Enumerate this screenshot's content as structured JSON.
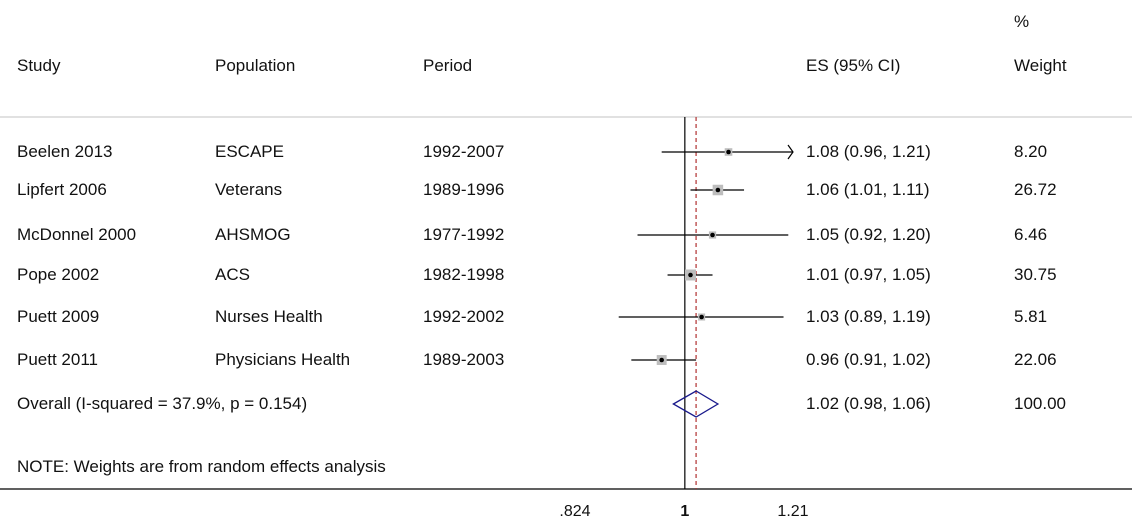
{
  "header": {
    "study": "Study",
    "population": "Population",
    "period": "Period",
    "es": "ES (95% CI)",
    "weight_pct": "%",
    "weight": "Weight"
  },
  "rows": [
    {
      "study": "Beelen 2013",
      "population": "ESCAPE",
      "period": "1992-2007",
      "es_text": "1.08 (0.96, 1.21)",
      "weight": "8.20"
    },
    {
      "study": "Lipfert 2006",
      "population": "Veterans",
      "period": "1989-1996",
      "es_text": "1.06 (1.01, 1.11)",
      "weight": "26.72"
    },
    {
      "study": "McDonnel 2000",
      "population": "AHSMOG",
      "period": "1977-1992",
      "es_text": "1.05 (0.92, 1.20)",
      "weight": "6.46"
    },
    {
      "study": "Pope 2002",
      "population": "ACS",
      "period": "1982-1998",
      "es_text": "1.01 (0.97, 1.05)",
      "weight": "30.75"
    },
    {
      "study": "Puett 2009",
      "population": "Nurses Health",
      "period": "1992-2002",
      "es_text": "1.03 (0.89, 1.19)",
      "weight": "5.81"
    },
    {
      "study": "Puett 2011",
      "population": "Physicians Health",
      "period": "1989-2003",
      "es_text": "0.96 (0.91, 1.02)",
      "weight": "22.06"
    }
  ],
  "overall": {
    "label": "Overall  (I-squared = 37.9%, p = 0.154)",
    "es_text": "1.02 (0.98, 1.06)",
    "weight": "100.00"
  },
  "note": "NOTE: Weights are from random effects analysis",
  "chart_data": {
    "type": "forest",
    "xscale": "log",
    "xlim": [
      0.824,
      1.21
    ],
    "null_line": 1,
    "xticks": [
      {
        "value": 0.824,
        "label": ".824"
      },
      {
        "value": 1,
        "label": "1"
      },
      {
        "value": 1.21,
        "label": "1.21"
      }
    ],
    "studies": [
      {
        "name": "Beelen 2013",
        "es": 1.08,
        "lower": 0.96,
        "upper": 1.21,
        "weight": 8.2,
        "arrow_right": true
      },
      {
        "name": "Lipfert 2006",
        "es": 1.06,
        "lower": 1.01,
        "upper": 1.11,
        "weight": 26.72
      },
      {
        "name": "McDonnel 2000",
        "es": 1.05,
        "lower": 0.92,
        "upper": 1.2,
        "weight": 6.46
      },
      {
        "name": "Pope 2002",
        "es": 1.01,
        "lower": 0.97,
        "upper": 1.05,
        "weight": 30.75
      },
      {
        "name": "Puett 2009",
        "es": 1.03,
        "lower": 0.89,
        "upper": 1.19,
        "weight": 5.81
      },
      {
        "name": "Puett 2011",
        "es": 0.96,
        "lower": 0.91,
        "upper": 1.02,
        "weight": 22.06
      }
    ],
    "overall": {
      "es": 1.02,
      "lower": 0.98,
      "upper": 1.06
    },
    "colors": {
      "box": "#bdbdbd",
      "line": "#000000",
      "diamond": "#1a1a8c",
      "overall_line": "#b03030",
      "axis": "#000000"
    }
  }
}
